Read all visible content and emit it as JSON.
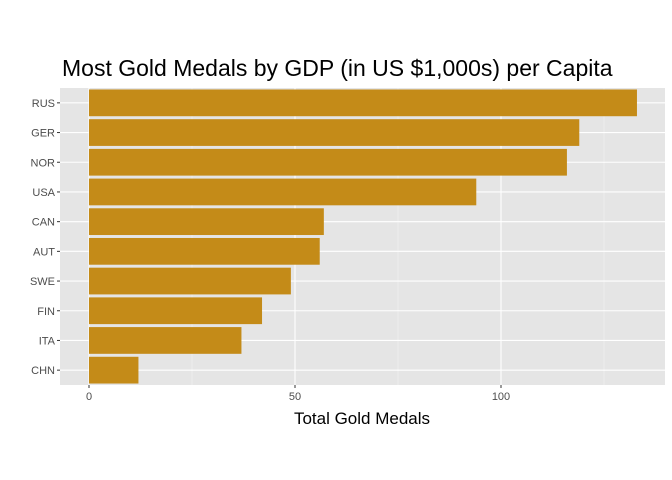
{
  "chart_data": {
    "type": "bar",
    "orientation": "horizontal",
    "title": "Most Gold Medals by GDP (in US $1,000s) per Capita",
    "xlabel": "Total Gold Medals",
    "ylabel": "",
    "categories": [
      "RUS",
      "GER",
      "NOR",
      "USA",
      "CAN",
      "AUT",
      "SWE",
      "FIN",
      "ITA",
      "CHN"
    ],
    "values": [
      133,
      119,
      116,
      94,
      57,
      56,
      49,
      42,
      37,
      12
    ],
    "xlim": [
      0,
      139
    ],
    "xticks": [
      0,
      50,
      100
    ],
    "grid": true,
    "colors": {
      "bar": "#C48B18",
      "panel": "#E5E5E5",
      "grid_major": "#FFFFFF",
      "grid_minor": "#F2F2F2",
      "tick_text": "#4D4D4D"
    }
  }
}
